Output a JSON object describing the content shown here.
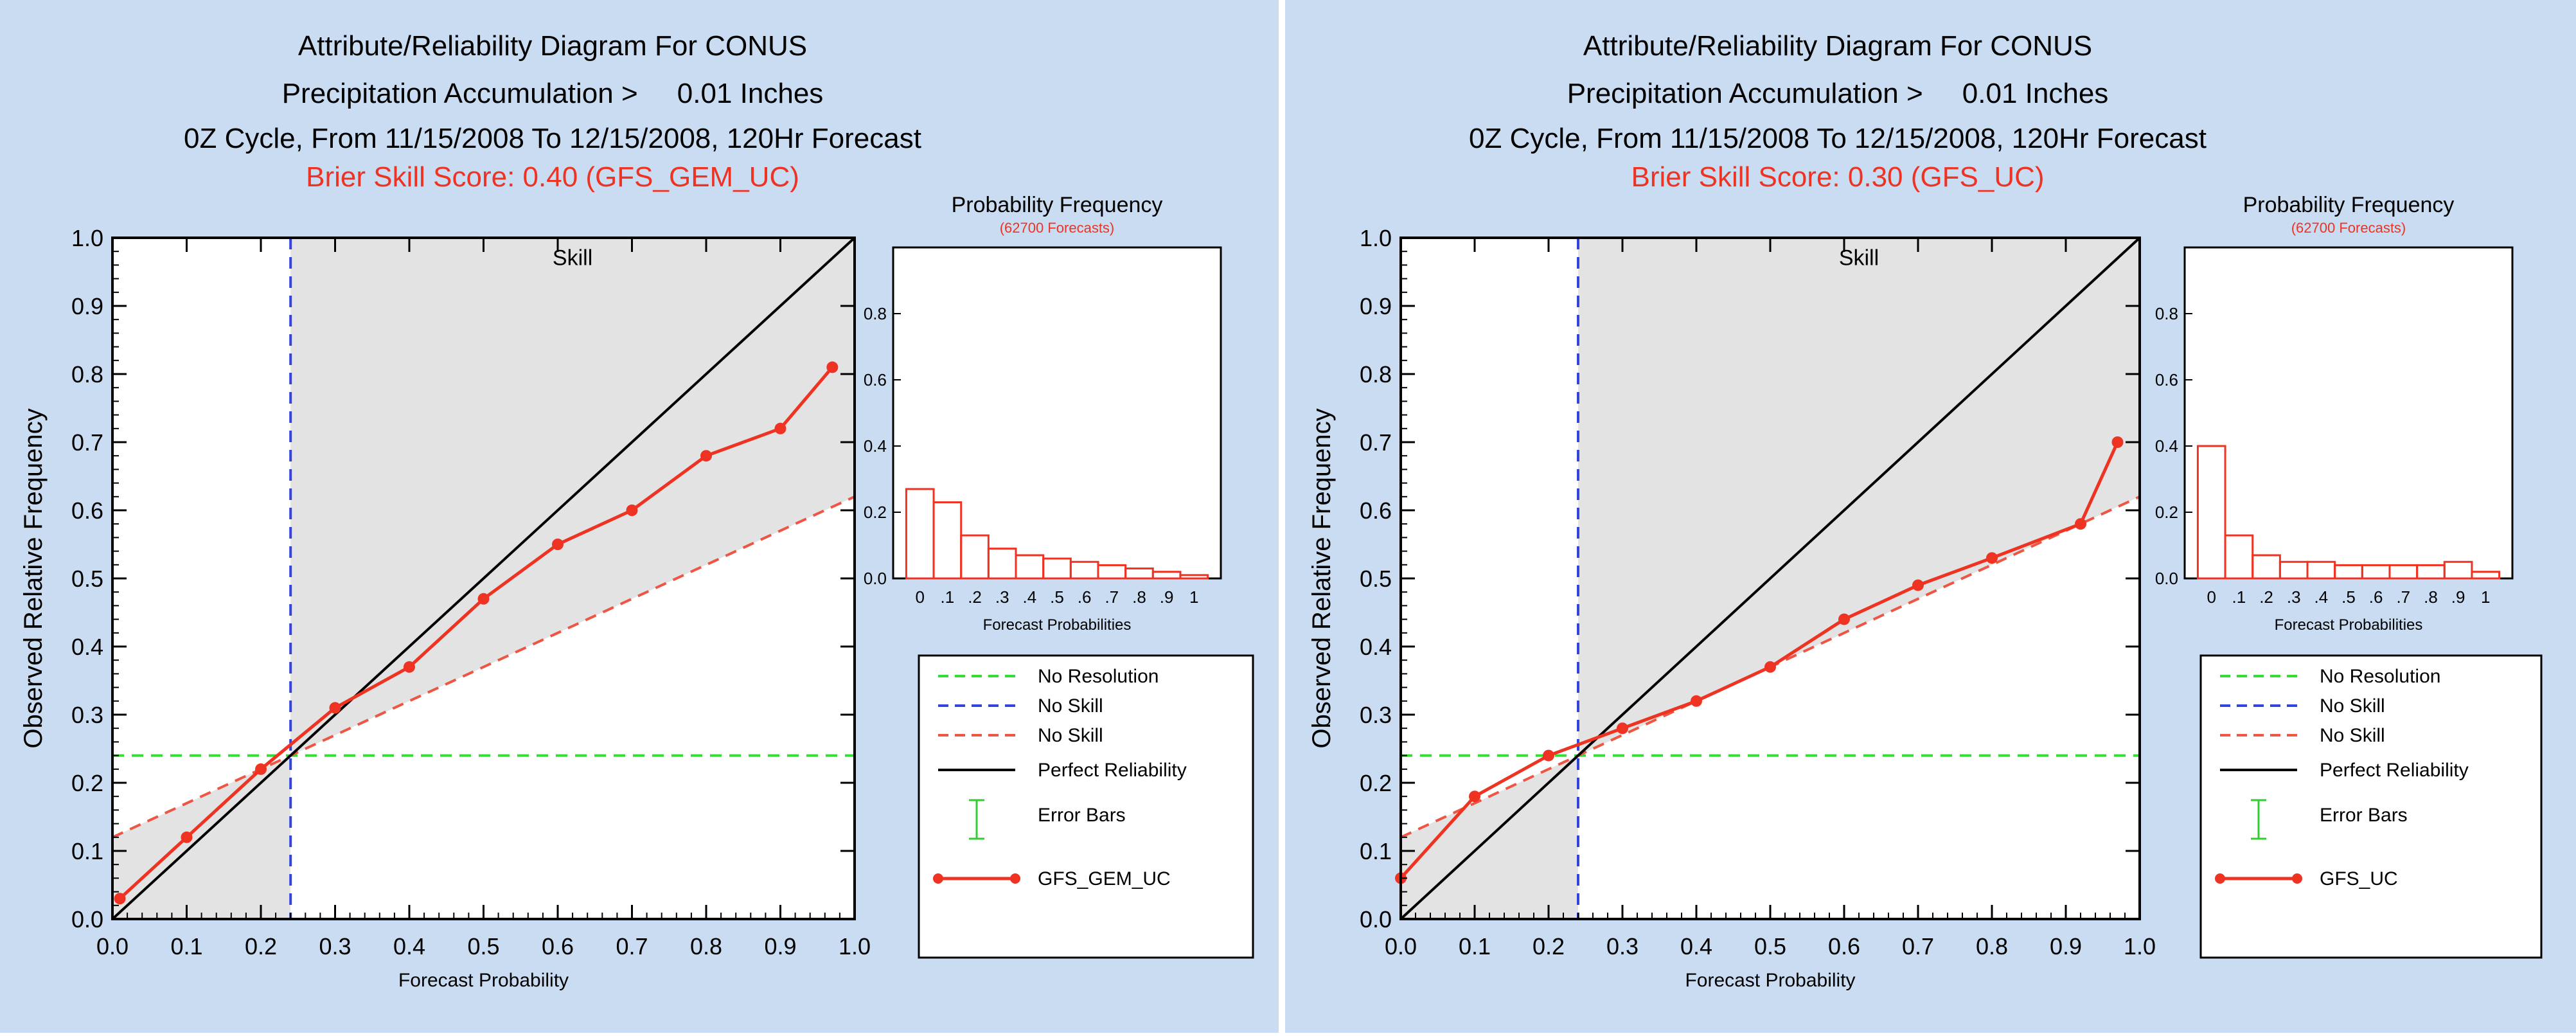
{
  "colors": {
    "panel_bg": "#c9dcf2",
    "series_red": "#ee3322",
    "no_resolution_green": "#33dd33",
    "no_skill_blue": "#3344dd",
    "no_skill_red": "#ee5544",
    "skill_shade": "#e3e3e3",
    "perfect_black": "#000000",
    "error_bar_green": "#33cc33"
  },
  "chart_data": [
    {
      "type": "line",
      "title": "Attribute/Reliability Diagram For CONUS",
      "subtitle_line1": "Precipitation Accumulation >     0.01 Inches",
      "subtitle_line2": "0Z Cycle, From 11/15/2008 To 12/15/2008, 120Hr Forecast",
      "score_label": "Brier Skill Score: 0.40 (GFS_GEM_UC)",
      "xlabel": "Forecast Probability",
      "ylabel": "Observed Relative Frequency",
      "xlim": [
        0,
        1
      ],
      "ylim": [
        0,
        1
      ],
      "xticks": [
        "0.0",
        "0.1",
        "0.2",
        "0.3",
        "0.4",
        "0.5",
        "0.6",
        "0.7",
        "0.8",
        "0.9",
        "1.0"
      ],
      "yticks": [
        "0.0",
        "0.1",
        "0.2",
        "0.3",
        "0.4",
        "0.5",
        "0.6",
        "0.7",
        "0.8",
        "0.9",
        "1.0"
      ],
      "skill_label": "Skill",
      "climatology": 0.24,
      "no_skill_line": {
        "y_at_0": 0.12,
        "y_at_1": 0.62
      },
      "series": [
        {
          "name": "GFS_GEM_UC",
          "x": [
            0.01,
            0.1,
            0.2,
            0.3,
            0.4,
            0.5,
            0.6,
            0.7,
            0.8,
            0.9,
            0.97
          ],
          "y": [
            0.03,
            0.12,
            0.22,
            0.31,
            0.37,
            0.47,
            0.55,
            0.6,
            0.68,
            0.72,
            0.81
          ]
        }
      ],
      "histogram": {
        "title": "Probability Frequency",
        "subtitle": "(62700 Forecasts)",
        "xlabel": "Forecast Probabilities",
        "xticks": [
          "0",
          ".1",
          ".2",
          ".3",
          ".4",
          ".5",
          ".6",
          ".7",
          ".8",
          ".9",
          "1"
        ],
        "yticks": [
          "0.0",
          "0.2",
          "0.4",
          "0.6",
          "0.8"
        ],
        "ylim": [
          0,
          1
        ],
        "values": [
          0.27,
          0.23,
          0.13,
          0.09,
          0.07,
          0.06,
          0.05,
          0.04,
          0.03,
          0.02,
          0.01
        ]
      },
      "legend": {
        "no_resolution": "No Resolution",
        "no_skill_a": "No Skill",
        "no_skill_b": "No Skill",
        "perfect": "Perfect Reliability",
        "error_bars": "Error Bars",
        "series": "GFS_GEM_UC"
      }
    },
    {
      "type": "line",
      "title": "Attribute/Reliability Diagram For CONUS",
      "subtitle_line1": "Precipitation Accumulation >     0.01 Inches",
      "subtitle_line2": "0Z Cycle, From 11/15/2008 To 12/15/2008, 120Hr Forecast",
      "score_label": "Brier Skill Score: 0.30 (GFS_UC)",
      "xlabel": "Forecast Probability",
      "ylabel": "Observed Relative Frequency",
      "xlim": [
        0,
        1
      ],
      "ylim": [
        0,
        1
      ],
      "xticks": [
        "0.0",
        "0.1",
        "0.2",
        "0.3",
        "0.4",
        "0.5",
        "0.6",
        "0.7",
        "0.8",
        "0.9",
        "1.0"
      ],
      "yticks": [
        "0.0",
        "0.1",
        "0.2",
        "0.3",
        "0.4",
        "0.5",
        "0.6",
        "0.7",
        "0.8",
        "0.9",
        "1.0"
      ],
      "skill_label": "Skill",
      "climatology": 0.24,
      "no_skill_line": {
        "y_at_0": 0.12,
        "y_at_1": 0.62
      },
      "series": [
        {
          "name": "GFS_UC",
          "x": [
            0.0,
            0.1,
            0.2,
            0.3,
            0.4,
            0.5,
            0.6,
            0.7,
            0.8,
            0.92,
            0.97
          ],
          "y": [
            0.06,
            0.18,
            0.24,
            0.28,
            0.32,
            0.37,
            0.44,
            0.49,
            0.53,
            0.58,
            0.7
          ]
        }
      ],
      "histogram": {
        "title": "Probability Frequency",
        "subtitle": "(62700 Forecasts)",
        "xlabel": "Forecast Probabilities",
        "xticks": [
          "0",
          ".1",
          ".2",
          ".3",
          ".4",
          ".5",
          ".6",
          ".7",
          ".8",
          ".9",
          "1"
        ],
        "yticks": [
          "0.0",
          "0.2",
          "0.4",
          "0.6",
          "0.8"
        ],
        "ylim": [
          0,
          1
        ],
        "values": [
          0.4,
          0.13,
          0.07,
          0.05,
          0.05,
          0.04,
          0.04,
          0.04,
          0.04,
          0.05,
          0.02
        ]
      },
      "legend": {
        "no_resolution": "No Resolution",
        "no_skill_a": "No Skill",
        "no_skill_b": "No Skill",
        "perfect": "Perfect Reliability",
        "error_bars": "Error Bars",
        "series": "GFS_UC"
      }
    }
  ]
}
